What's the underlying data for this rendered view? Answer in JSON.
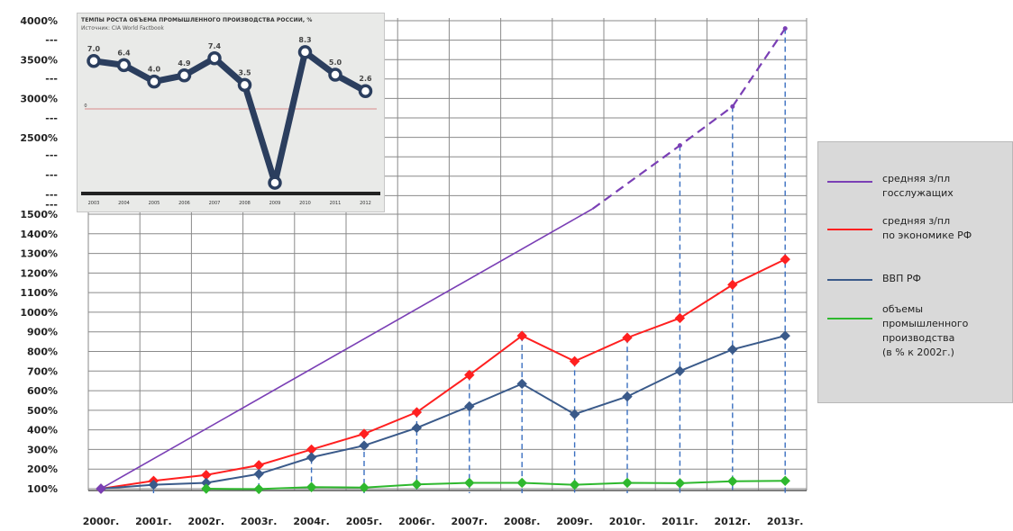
{
  "chart_data": [
    {
      "type": "line",
      "title": "",
      "xlabel": "",
      "ylabel": "",
      "categories": [
        "2000г.",
        "2001г.",
        "2002г.",
        "2003г.",
        "2004г.",
        "2005г.",
        "2006г.",
        "2007г.",
        "2008г.",
        "2009г.",
        "2010г.",
        "2011г.",
        "2012г.",
        "2013г."
      ],
      "yticks_lower": [
        "100%",
        "200%",
        "300%",
        "400%",
        "500%",
        "600%",
        "700%",
        "800%",
        "900%",
        "1000%",
        "1100%",
        "1200%",
        "1300%",
        "1400%",
        "1500%"
      ],
      "yticks_upper": [
        "2500%",
        "3000%",
        "3500%",
        "4000%"
      ],
      "axis_break_marks": [
        "---",
        "---",
        "---",
        "---",
        "---",
        "---",
        "---"
      ],
      "y_lower_range": [
        100,
        1500
      ],
      "y_upper_range": [
        2500,
        4000
      ],
      "grid": true,
      "legend_placement": "right",
      "series": [
        {
          "name": "средняя з/пл\nгосслужащих",
          "color": "#7a3fb5",
          "values": [
            100,
            null,
            null,
            null,
            null,
            null,
            null,
            null,
            null,
            null,
            null,
            2400,
            2900,
            3900
          ],
          "dashed_from": 9
        },
        {
          "name": "средняя з/пл\nпо экономике РФ",
          "color": "#ff2020",
          "values": [
            100,
            140,
            170,
            220,
            300,
            380,
            490,
            680,
            880,
            750,
            870,
            970,
            1140,
            1270
          ]
        },
        {
          "name": "ВВП РФ",
          "color": "#3a5a8a",
          "values": [
            100,
            120,
            130,
            175,
            260,
            320,
            410,
            520,
            635,
            480,
            570,
            700,
            810,
            880
          ]
        },
        {
          "name": "объемы\nпромышленного\nпроизводства\n(в % к 2002г.)",
          "color": "#2eb82e",
          "values": [
            null,
            null,
            100,
            98,
            108,
            106,
            122,
            130,
            130,
            120,
            130,
            128,
            138,
            140
          ]
        }
      ]
    },
    {
      "type": "line",
      "title": "ТЕМПЫ РОСТА ОБЪЕМА ПРОМЫШЛЕННОГО ПРОИЗВОДСТВА РОССИИ, %",
      "subtitle": "Источник: CIA World Factbook",
      "categories": [
        "2003",
        "2004",
        "2005",
        "2006",
        "2007",
        "2008",
        "2009",
        "2010",
        "2011",
        "2012"
      ],
      "values": [
        7.0,
        6.4,
        4.0,
        4.9,
        7.4,
        3.5,
        -10.8,
        8.3,
        5.0,
        2.6
      ],
      "labels": [
        "7.0",
        "6.4",
        "4.0",
        "4.9",
        "7.4",
        "3.5",
        "",
        "8.3",
        "5.0",
        "2.6"
      ],
      "zero_label": "0",
      "color": "#2b3e5e"
    }
  ]
}
